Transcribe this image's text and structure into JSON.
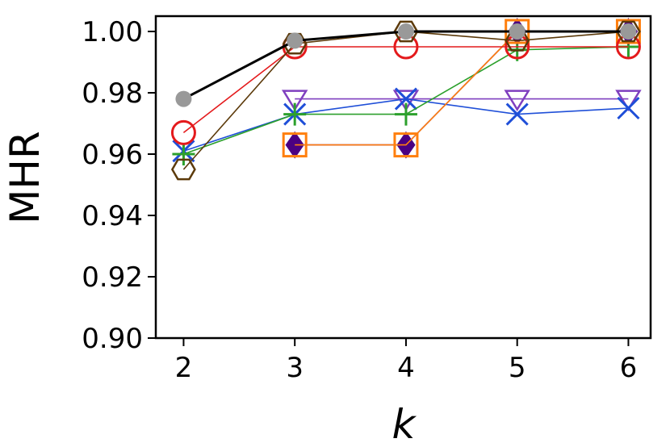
{
  "chart_data": {
    "type": "line",
    "title": "",
    "xlabel": "k",
    "ylabel": "MHR",
    "x": [
      2,
      3,
      4,
      5,
      6
    ],
    "xticks": [
      "2",
      "3",
      "4",
      "5",
      "6"
    ],
    "yticks": [
      "0.90",
      "0.92",
      "0.94",
      "0.96",
      "0.98",
      "1.00"
    ],
    "xlim": [
      1.75,
      6.2
    ],
    "ylim": [
      0.9,
      1.005
    ],
    "grid": false,
    "series": [
      {
        "color": "#7f3fbf",
        "marker": "triangle-down",
        "values": [
          null,
          0.978,
          0.978,
          0.978,
          0.978
        ]
      },
      {
        "color": "#1f4fd8",
        "marker": "x",
        "values": [
          0.961,
          0.973,
          0.978,
          0.973,
          0.975
        ]
      },
      {
        "color": "#2ca02c",
        "marker": "plus",
        "values": [
          0.96,
          0.973,
          0.973,
          0.994,
          0.995
        ]
      },
      {
        "color": "#4b0082",
        "marker": "diamond",
        "values": [
          null,
          0.963,
          0.963,
          1.0,
          1.0
        ]
      },
      {
        "color": "#ff7f0e",
        "marker": "square",
        "values": [
          null,
          0.963,
          0.963,
          1.0,
          1.0
        ]
      },
      {
        "color": "#e41a1c",
        "marker": "circle-open",
        "values": [
          0.967,
          0.995,
          0.995,
          0.995,
          0.995
        ]
      },
      {
        "color": "#5c3a0a",
        "marker": "hexagon",
        "values": [
          0.955,
          0.996,
          1.0,
          0.997,
          1.0
        ]
      },
      {
        "color": "#000000",
        "marker": "circle-filled",
        "marker_color": "#999999",
        "values": [
          0.978,
          0.997,
          1.0,
          1.0,
          1.0
        ]
      }
    ]
  }
}
